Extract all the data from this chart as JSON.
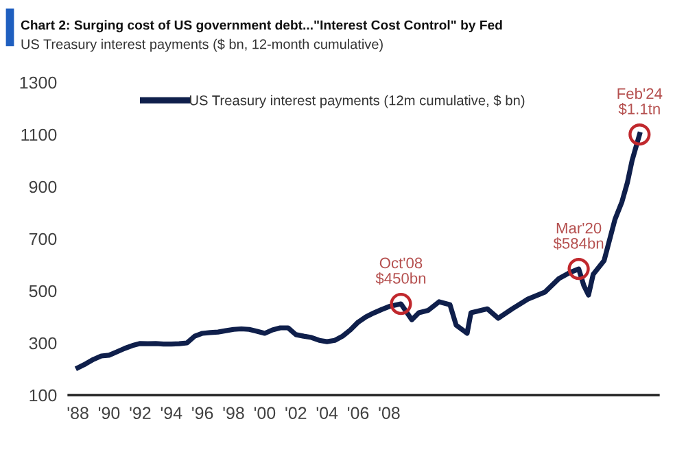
{
  "chart_data": {
    "type": "line",
    "title": "Chart 2: Surging cost of US government debt...\"Interest Cost Control\" by Fed",
    "subtitle": "US Treasury interest payments ($ bn, 12-month cumulative)",
    "x": [
      1988.0,
      1988.5,
      1989.0,
      1989.5,
      1990.0,
      1990.5,
      1991.0,
      1991.5,
      1992.0,
      1992.5,
      1993.0,
      1993.5,
      1994.0,
      1994.5,
      1995.0,
      1995.5,
      1996.0,
      1996.5,
      1997.0,
      1997.5,
      1998.0,
      1998.5,
      1999.0,
      1999.5,
      2000.0,
      2000.5,
      2001.0,
      2001.5,
      2002.0,
      2002.5,
      2003.0,
      2003.5,
      2004.0,
      2004.5,
      2005.0,
      2005.5,
      2006.0,
      2006.5,
      2007.0,
      2007.5,
      2008.0,
      2008.75,
      2009.45,
      2009.9,
      2010.5,
      2011.2,
      2011.9,
      2012.3,
      2013.0,
      2013.25,
      2014.3,
      2015.0,
      2015.9,
      2016.9,
      2018.0,
      2018.9,
      2019.6,
      2020.17,
      2020.5,
      2020.8,
      2021.1,
      2021.8,
      2022.5,
      2022.95,
      2023.3,
      2023.6,
      2024.08
    ],
    "series": [
      {
        "name": "US Treasury interest payments (12m cumulative, $ bn)",
        "color": "#0f1f4b",
        "values": [
          205,
          220,
          237,
          250,
          253,
          266,
          279,
          290,
          298,
          297,
          298,
          296,
          296,
          297,
          300,
          326,
          337,
          340,
          342,
          347,
          352,
          354,
          352,
          345,
          337,
          350,
          358,
          358,
          332,
          326,
          321,
          310,
          305,
          310,
          326,
          350,
          380,
          400,
          415,
          428,
          440,
          450,
          389,
          416,
          425,
          458,
          447,
          368,
          337,
          416,
          431,
          395,
          431,
          468,
          495,
          547,
          570,
          584,
          520,
          484,
          563,
          616,
          774,
          842,
          916,
          1000,
          1100
        ]
      }
    ],
    "xlim": [
      1987.4,
      2025.3
    ],
    "xticks": [
      {
        "value": 1988,
        "label": "'88"
      },
      {
        "value": 1990,
        "label": "'90"
      },
      {
        "value": 1992,
        "label": "'92"
      },
      {
        "value": 1994,
        "label": "'94"
      },
      {
        "value": 1996,
        "label": "'96"
      },
      {
        "value": 1998,
        "label": "'98"
      },
      {
        "value": 2000,
        "label": "'00"
      },
      {
        "value": 2002,
        "label": "'02"
      },
      {
        "value": 2004,
        "label": "'04"
      },
      {
        "value": 2006,
        "label": "'06"
      },
      {
        "value": 2008,
        "label": "'08"
      }
    ],
    "ylim": [
      100,
      1300
    ],
    "yticks": [
      100,
      300,
      500,
      700,
      900,
      1100,
      1300
    ],
    "annotations": [
      {
        "text": "Oct'08\n$450bn",
        "x": 2008.75,
        "y": 450
      },
      {
        "text": "Mar'20\n$584bn",
        "x": 2020.17,
        "y": 584
      },
      {
        "text": "Feb'24\n$1.1tn",
        "x": 2024.08,
        "y": 1100
      }
    ],
    "legend": "top",
    "grid": false,
    "marker": "none",
    "line_style": "solid"
  }
}
